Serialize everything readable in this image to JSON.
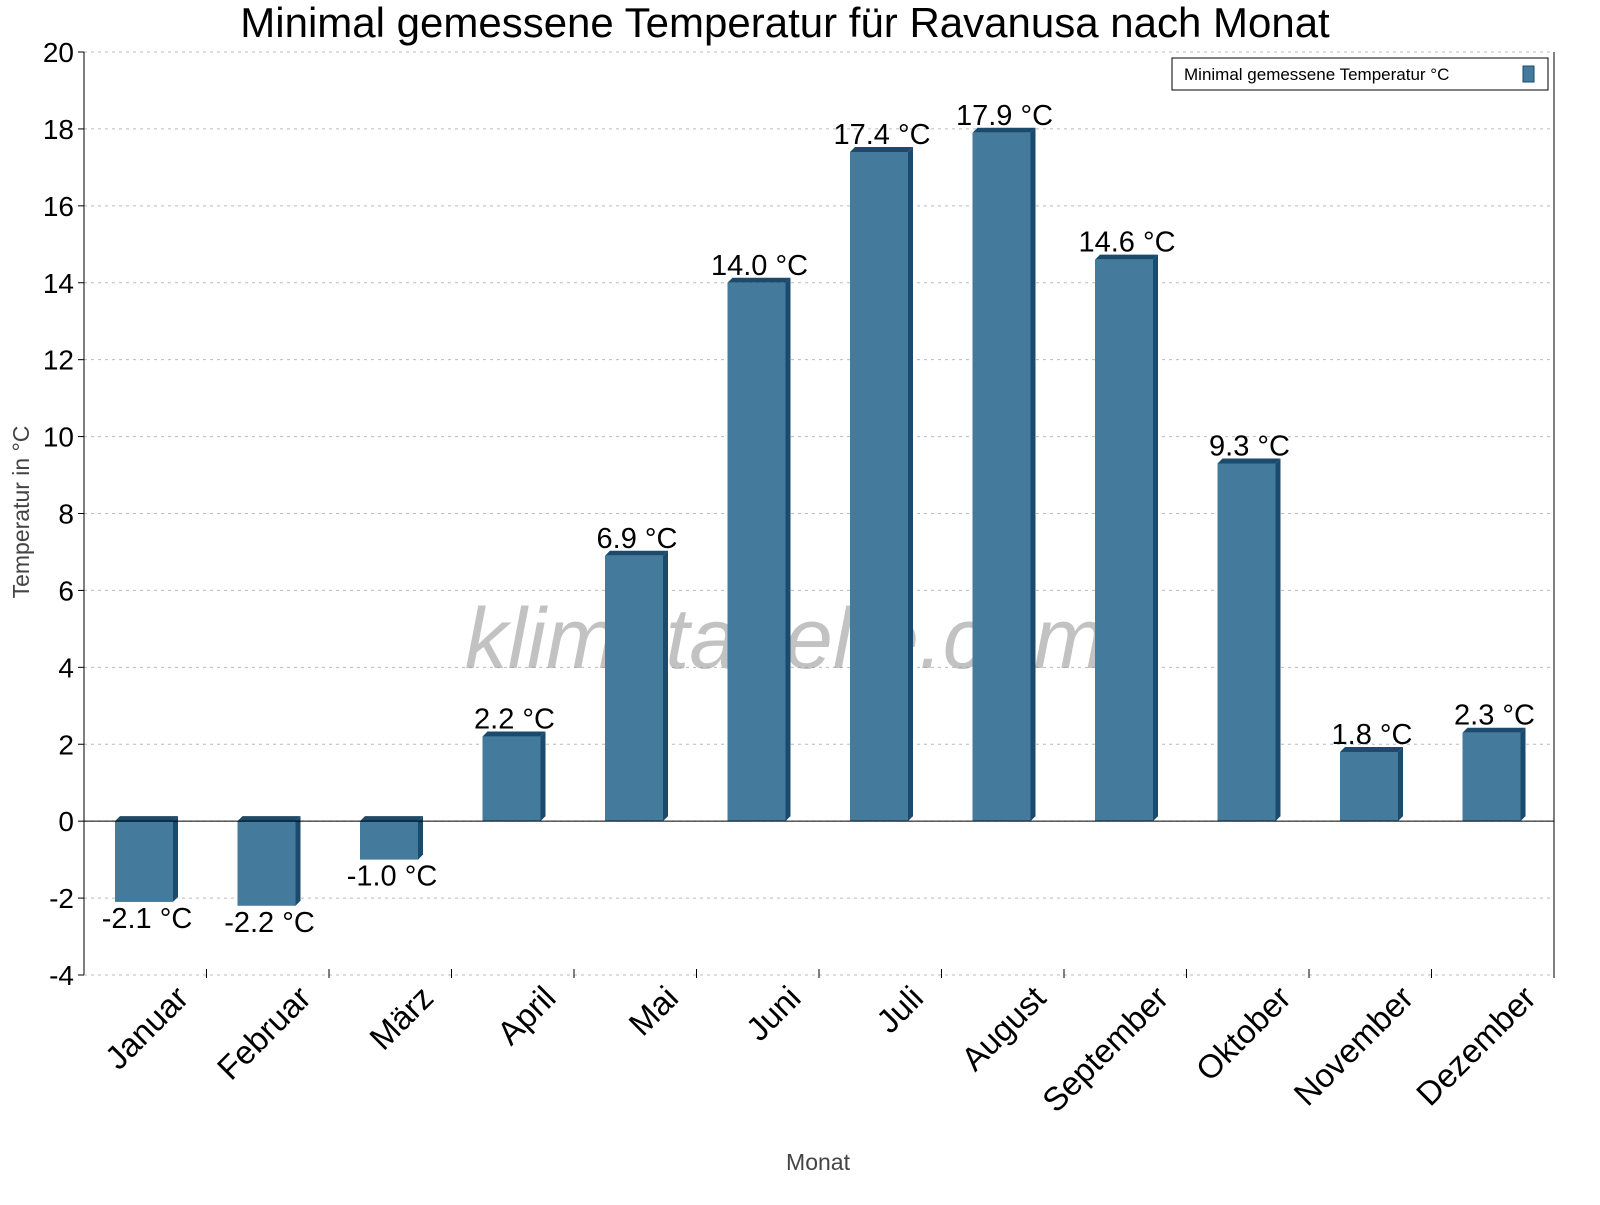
{
  "chart_data": {
    "type": "bar",
    "title": "Minimal gemessene Temperatur für Ravanusa nach Monat",
    "xlabel": "Monat",
    "ylabel": "Temperatur in °C",
    "ylim": [
      -4,
      20
    ],
    "yticks": [
      -4,
      -2,
      0,
      2,
      4,
      6,
      8,
      10,
      12,
      14,
      16,
      18,
      20
    ],
    "grid": true,
    "legend_position": "top-right",
    "categories": [
      "Januar",
      "Februar",
      "März",
      "April",
      "Mai",
      "Juni",
      "Juli",
      "August",
      "September",
      "Oktober",
      "November",
      "Dezember"
    ],
    "series": [
      {
        "name": "Minimal gemessene Temperatur °C",
        "values": [
          -2.1,
          -2.2,
          -1.0,
          2.2,
          6.9,
          14.0,
          17.4,
          17.9,
          14.6,
          9.3,
          1.8,
          2.3
        ],
        "labels": [
          "-2.1 °C",
          "-2.2 °C",
          "-1.0 °C",
          "2.2 °C",
          "6.9 °C",
          "14.0 °C",
          "17.4 °C",
          "17.9 °C",
          "14.6 °C",
          "9.3 °C",
          "1.8 °C",
          "2.3 °C"
        ]
      }
    ],
    "colors": {
      "bar": "#447a9c",
      "bar_side": "#1a4a6c"
    },
    "watermark": "klimatabelle.com"
  }
}
